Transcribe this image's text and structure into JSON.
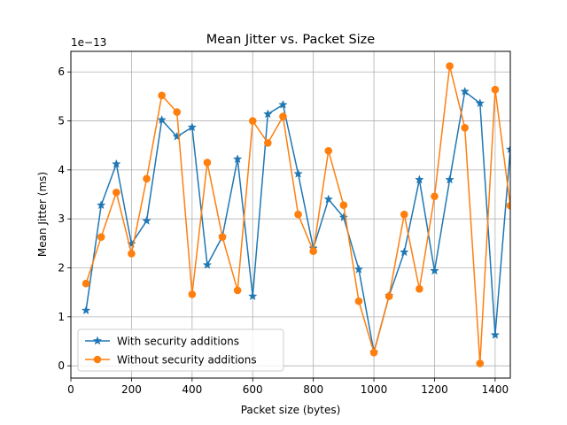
{
  "chart_data": {
    "type": "line",
    "title": "Mean Jitter vs. Packet Size",
    "xlabel": "Packet size (bytes)",
    "ylabel": "Mean Jitter (ms)",
    "y_offset_text": "1e−13",
    "y_scale": 1e-13,
    "xlim": [
      0,
      1450
    ],
    "ylim": [
      -0.25,
      6.42
    ],
    "x_ticks": [
      0,
      200,
      400,
      600,
      800,
      1000,
      1200,
      1400
    ],
    "y_ticks": [
      0,
      1,
      2,
      3,
      4,
      5,
      6
    ],
    "grid": true,
    "legend_position": "lower-left",
    "x": [
      50,
      100,
      150,
      200,
      250,
      300,
      350,
      400,
      450,
      500,
      550,
      600,
      650,
      700,
      750,
      800,
      850,
      900,
      950,
      1000,
      1050,
      1100,
      1150,
      1200,
      1250,
      1300,
      1350,
      1400,
      1450
    ],
    "series": [
      {
        "name": "With security additions",
        "color": "#1f77b4",
        "marker": "star",
        "values": [
          1.13,
          3.28,
          4.12,
          2.49,
          2.96,
          5.02,
          4.68,
          4.87,
          2.06,
          2.64,
          4.22,
          1.42,
          5.14,
          5.33,
          3.92,
          2.4,
          3.4,
          3.03,
          1.97,
          0.28,
          1.43,
          2.32,
          3.8,
          1.94,
          3.8,
          5.6,
          5.36,
          0.63,
          4.42
        ]
      },
      {
        "name": "Without security additions",
        "color": "#ff7f0e",
        "marker": "circle",
        "values": [
          1.68,
          2.63,
          3.54,
          2.29,
          3.82,
          5.52,
          5.18,
          1.46,
          4.15,
          2.63,
          1.54,
          5.0,
          4.55,
          5.09,
          3.09,
          2.34,
          4.39,
          3.28,
          1.32,
          0.27,
          1.42,
          3.09,
          1.57,
          3.46,
          6.12,
          4.86,
          0.05,
          5.64,
          3.27
        ]
      }
    ]
  }
}
